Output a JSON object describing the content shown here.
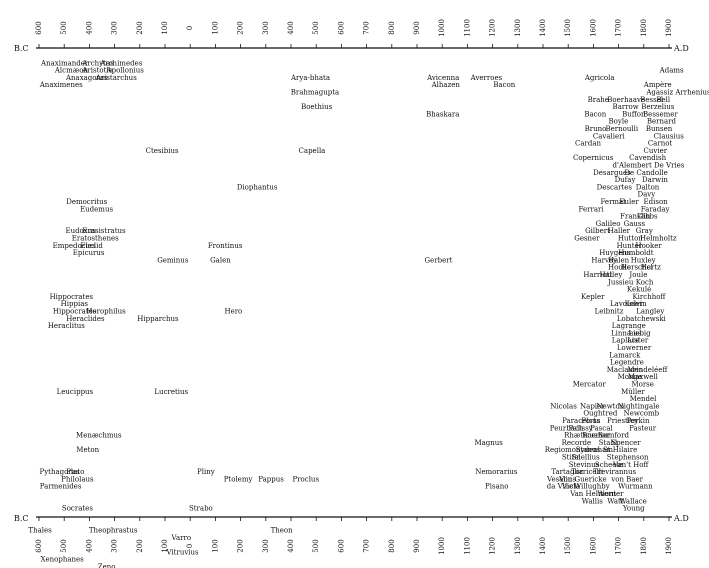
{
  "era_labels": {
    "top_left": "B.C",
    "top_right": "A.D",
    "bottom_left": "B.C",
    "bottom_right": "A.D"
  },
  "axis_ticks": [
    {
      "year": -600,
      "label": "600"
    },
    {
      "year": -500,
      "label": "500"
    },
    {
      "year": -400,
      "label": "400"
    },
    {
      "year": -300,
      "label": "300"
    },
    {
      "year": -200,
      "label": "200"
    },
    {
      "year": -100,
      "label": "100"
    },
    {
      "year": 0,
      "label": "0"
    },
    {
      "year": 100,
      "label": "100"
    },
    {
      "year": 200,
      "label": "200"
    },
    {
      "year": 300,
      "label": "300"
    },
    {
      "year": 400,
      "label": "400"
    },
    {
      "year": 500,
      "label": "500"
    },
    {
      "year": 600,
      "label": "600"
    },
    {
      "year": 700,
      "label": "700"
    },
    {
      "year": 800,
      "label": "800"
    },
    {
      "year": 900,
      "label": "900"
    },
    {
      "year": 1000,
      "label": "1000"
    },
    {
      "year": 1100,
      "label": "1100"
    },
    {
      "year": 1200,
      "label": "1200"
    },
    {
      "year": 1300,
      "label": "1300"
    },
    {
      "year": 1400,
      "label": "1400"
    },
    {
      "year": 1500,
      "label": "1500"
    },
    {
      "year": 1600,
      "label": "1600"
    },
    {
      "year": 1700,
      "label": "1700"
    },
    {
      "year": 1800,
      "label": "1800"
    },
    {
      "year": 1900,
      "label": "1900"
    }
  ],
  "names": [
    {
      "n": "Anaximander",
      "x": -592,
      "y": 1
    },
    {
      "n": "Archytas",
      "x": -428,
      "y": 1
    },
    {
      "n": "Archimedes",
      "x": -357,
      "y": 1
    },
    {
      "n": "Alcmæon",
      "x": -537,
      "y": 2
    },
    {
      "n": "Aristotle",
      "x": -428,
      "y": 2
    },
    {
      "n": "Apollonius",
      "x": -332,
      "y": 2
    },
    {
      "n": "Anaxagoras",
      "x": -493,
      "y": 3
    },
    {
      "n": "Aristarchus",
      "x": -375,
      "y": 3
    },
    {
      "n": "Anaximenes",
      "x": -597,
      "y": 4
    },
    {
      "n": "Ctesibius",
      "x": -177,
      "y": 13
    },
    {
      "n": "Democritus",
      "x": -492,
      "y": 20
    },
    {
      "n": "Eudemus",
      "x": -437,
      "y": 21
    },
    {
      "n": "Eudoxus",
      "x": -495,
      "y": 24
    },
    {
      "n": "Erasistratus",
      "x": -428,
      "y": 24
    },
    {
      "n": "Eratosthenes",
      "x": -470,
      "y": 25
    },
    {
      "n": "Empedocles",
      "x": -546,
      "y": 26
    },
    {
      "n": "Euclid",
      "x": -436,
      "y": 26
    },
    {
      "n": "Epicurus",
      "x": -466,
      "y": 27
    },
    {
      "n": "Geminus",
      "x": -131,
      "y": 28
    },
    {
      "n": "Galen",
      "x": 79,
      "y": 28
    },
    {
      "n": "Hippocrates",
      "x": -558,
      "y": 33
    },
    {
      "n": "Hippias",
      "x": -514,
      "y": 34
    },
    {
      "n": "Hippocrates",
      "x": -545,
      "y": 35
    },
    {
      "n": "Herophilus",
      "x": -412,
      "y": 35
    },
    {
      "n": "Heraclides",
      "x": -492,
      "y": 36
    },
    {
      "n": "Hipparchus",
      "x": -210,
      "y": 36
    },
    {
      "n": "Heraclitus",
      "x": -565,
      "y": 37
    },
    {
      "n": "Hero",
      "x": 136,
      "y": 35
    },
    {
      "n": "Leucippus",
      "x": -530,
      "y": 46
    },
    {
      "n": "Lucretius",
      "x": -142,
      "y": 46
    },
    {
      "n": "Menæchmus",
      "x": -453,
      "y": 52
    },
    {
      "n": "Meton",
      "x": -452,
      "y": 54
    },
    {
      "n": "Pythagoras",
      "x": -598,
      "y": 57
    },
    {
      "n": "Plato",
      "x": -492,
      "y": 57
    },
    {
      "n": "Philolaus",
      "x": -512,
      "y": 58
    },
    {
      "n": "Parmenides",
      "x": -597,
      "y": 59
    },
    {
      "n": "Socrates",
      "x": -509,
      "y": 62
    },
    {
      "n": "Thales",
      "x": -642,
      "y": 65
    },
    {
      "n": "Theophrastus",
      "x": -402,
      "y": 65
    },
    {
      "n": "Xenophanes",
      "x": -594,
      "y": 69
    },
    {
      "n": "Zeno",
      "x": -367,
      "y": 70
    },
    {
      "n": "Strabo",
      "x": -5,
      "y": 62
    },
    {
      "n": "Varro",
      "x": -74,
      "y": 66
    },
    {
      "n": "Vitruvius",
      "x": -94,
      "y": 68
    },
    {
      "n": "Theon",
      "x": 319,
      "y": 65
    },
    {
      "n": "Diophantus",
      "x": 185,
      "y": 18
    },
    {
      "n": "Frontinus",
      "x": 70,
      "y": 26
    },
    {
      "n": "Pliny",
      "x": 27,
      "y": 57
    },
    {
      "n": "Ptolemy",
      "x": 133,
      "y": 58
    },
    {
      "n": "Pappus",
      "x": 270,
      "y": 58
    },
    {
      "n": "Proclus",
      "x": 406,
      "y": 58
    },
    {
      "n": "Arya-bhata",
      "x": 400,
      "y": 3
    },
    {
      "n": "Brahmagupta",
      "x": 399,
      "y": 5
    },
    {
      "n": "Boethius",
      "x": 440,
      "y": 7
    },
    {
      "n": "Capella",
      "x": 430,
      "y": 13
    },
    {
      "n": "Gerbert",
      "x": 930,
      "y": 28
    },
    {
      "n": "Avicenna",
      "x": 940,
      "y": 3
    },
    {
      "n": "Alhazen",
      "x": 958,
      "y": 4
    },
    {
      "n": "Averroes",
      "x": 1113,
      "y": 3
    },
    {
      "n": "Bhaskara",
      "x": 936,
      "y": 8
    },
    {
      "n": "Bacon",
      "x": 1203,
      "y": 4
    },
    {
      "n": "Magnus",
      "x": 1128,
      "y": 53
    },
    {
      "n": "Nemorarius",
      "x": 1131,
      "y": 57
    },
    {
      "n": "Pisano",
      "x": 1170,
      "y": 59
    },
    {
      "n": "Agricola",
      "x": 1566,
      "y": 3
    },
    {
      "n": "Adams",
      "x": 1863,
      "y": 2
    },
    {
      "n": "Ampère",
      "x": 1800,
      "y": 4
    },
    {
      "n": "Agassiz Arrhenius",
      "x": 1810,
      "y": 5
    },
    {
      "n": "Brahe",
      "x": 1577,
      "y": 6
    },
    {
      "n": "Boerhaave",
      "x": 1655,
      "y": 6
    },
    {
      "n": "Bessel",
      "x": 1786,
      "y": 6
    },
    {
      "n": "Bell",
      "x": 1850,
      "y": 6
    },
    {
      "n": "Barrow",
      "x": 1676,
      "y": 7
    },
    {
      "n": "Berzelius",
      "x": 1790,
      "y": 7
    },
    {
      "n": "Bacon",
      "x": 1564,
      "y": 8
    },
    {
      "n": "Buffon",
      "x": 1714,
      "y": 8
    },
    {
      "n": "Bessemer",
      "x": 1797,
      "y": 8
    },
    {
      "n": "Boyle",
      "x": 1660,
      "y": 9
    },
    {
      "n": "Bernard",
      "x": 1812,
      "y": 9
    },
    {
      "n": "Bruno",
      "x": 1565,
      "y": 10
    },
    {
      "n": "Bernoulli",
      "x": 1648,
      "y": 10
    },
    {
      "n": "Bunsen",
      "x": 1808,
      "y": 10
    },
    {
      "n": "Cavalieri",
      "x": 1598,
      "y": 11
    },
    {
      "n": "Clausius",
      "x": 1839,
      "y": 11
    },
    {
      "n": "Cardan",
      "x": 1527,
      "y": 12
    },
    {
      "n": "Carnot",
      "x": 1816,
      "y": 12
    },
    {
      "n": "Cuvier",
      "x": 1799,
      "y": 13
    },
    {
      "n": "Copernicus",
      "x": 1519,
      "y": 14
    },
    {
      "n": "Cavendish",
      "x": 1742,
      "y": 14
    },
    {
      "n": "d'Alembert De Vries",
      "x": 1676,
      "y": 15
    },
    {
      "n": "Desargues",
      "x": 1599,
      "y": 16
    },
    {
      "n": "De Candolle",
      "x": 1723,
      "y": 16
    },
    {
      "n": "Dufay",
      "x": 1684,
      "y": 17
    },
    {
      "n": "Darwin",
      "x": 1793,
      "y": 17
    },
    {
      "n": "Descartes",
      "x": 1613,
      "y": 18
    },
    {
      "n": "Dalton",
      "x": 1768,
      "y": 18
    },
    {
      "n": "Davy",
      "x": 1775,
      "y": 19
    },
    {
      "n": "Fermat",
      "x": 1628,
      "y": 20
    },
    {
      "n": "Euler",
      "x": 1703,
      "y": 20
    },
    {
      "n": "Edison",
      "x": 1799,
      "y": 20
    },
    {
      "n": "Ferrari",
      "x": 1541,
      "y": 21
    },
    {
      "n": "Faraday",
      "x": 1788,
      "y": 21
    },
    {
      "n": "Franklin",
      "x": 1706,
      "y": 22
    },
    {
      "n": "Gibbs",
      "x": 1774,
      "y": 22
    },
    {
      "n": "Galileo",
      "x": 1609,
      "y": 23
    },
    {
      "n": "Gauss",
      "x": 1720,
      "y": 23
    },
    {
      "n": "Gilbert",
      "x": 1567,
      "y": 24
    },
    {
      "n": "Haller",
      "x": 1657,
      "y": 24
    },
    {
      "n": "Gray",
      "x": 1768,
      "y": 24
    },
    {
      "n": "Gesner",
      "x": 1524,
      "y": 25
    },
    {
      "n": "Hutton",
      "x": 1697,
      "y": 25
    },
    {
      "n": "Helmholtz",
      "x": 1785,
      "y": 25
    },
    {
      "n": "Hunter",
      "x": 1692,
      "y": 26
    },
    {
      "n": "Hooker",
      "x": 1767,
      "y": 26
    },
    {
      "n": "Huygens",
      "x": 1623,
      "y": 27
    },
    {
      "n": "Humboldt",
      "x": 1698,
      "y": 27
    },
    {
      "n": "Harvey",
      "x": 1592,
      "y": 28
    },
    {
      "n": "Halen",
      "x": 1658,
      "y": 28
    },
    {
      "n": "Huxley",
      "x": 1748,
      "y": 28
    },
    {
      "n": "Hooke",
      "x": 1658,
      "y": 29
    },
    {
      "n": "Herschel",
      "x": 1709,
      "y": 29
    },
    {
      "n": "Hertz",
      "x": 1788,
      "y": 29
    },
    {
      "n": "Harriott",
      "x": 1560,
      "y": 30
    },
    {
      "n": "Halley",
      "x": 1624,
      "y": 30
    },
    {
      "n": "Joule",
      "x": 1743,
      "y": 30
    },
    {
      "n": "Jussieu",
      "x": 1658,
      "y": 31
    },
    {
      "n": "Koch",
      "x": 1768,
      "y": 31
    },
    {
      "n": "Kekulé",
      "x": 1733,
      "y": 32
    },
    {
      "n": "Kepler",
      "x": 1551,
      "y": 33
    },
    {
      "n": "Kirchhoff",
      "x": 1755,
      "y": 33
    },
    {
      "n": "Lavoisier",
      "x": 1666,
      "y": 34
    },
    {
      "n": "Kelvin",
      "x": 1724,
      "y": 34
    },
    {
      "n": "Leibnitz",
      "x": 1605,
      "y": 35
    },
    {
      "n": "Langley",
      "x": 1770,
      "y": 35
    },
    {
      "n": "Lobatchewski",
      "x": 1693,
      "y": 36
    },
    {
      "n": "Lagrange",
      "x": 1673,
      "y": 37
    },
    {
      "n": "Linnæus",
      "x": 1670,
      "y": 38
    },
    {
      "n": "Liebig",
      "x": 1739,
      "y": 38
    },
    {
      "n": "Laplace",
      "x": 1673,
      "y": 39
    },
    {
      "n": "Lister",
      "x": 1735,
      "y": 39
    },
    {
      "n": "Lowerner",
      "x": 1693,
      "y": 40
    },
    {
      "n": "Lamarck",
      "x": 1663,
      "y": 41
    },
    {
      "n": "Legendre",
      "x": 1666,
      "y": 42
    },
    {
      "n": "Maclaurin",
      "x": 1653,
      "y": 43
    },
    {
      "n": "Mendeléeff",
      "x": 1735,
      "y": 43
    },
    {
      "n": "Monge",
      "x": 1696,
      "y": 44
    },
    {
      "n": "Maxwell",
      "x": 1737,
      "y": 44
    },
    {
      "n": "Mercator",
      "x": 1518,
      "y": 45
    },
    {
      "n": "Morse",
      "x": 1751,
      "y": 45
    },
    {
      "n": "Müller",
      "x": 1710,
      "y": 46
    },
    {
      "n": "Mendel",
      "x": 1744,
      "y": 47
    },
    {
      "n": "Nicolas",
      "x": 1429,
      "y": 48
    },
    {
      "n": "Napier",
      "x": 1547,
      "y": 48
    },
    {
      "n": "Newton",
      "x": 1612,
      "y": 48
    },
    {
      "n": "Nightingale",
      "x": 1696,
      "y": 48
    },
    {
      "n": "Oughtred",
      "x": 1560,
      "y": 49
    },
    {
      "n": "Newcomb",
      "x": 1720,
      "y": 49
    },
    {
      "n": "Paracelsus",
      "x": 1476,
      "y": 50
    },
    {
      "n": "Porta",
      "x": 1552,
      "y": 50
    },
    {
      "n": "Priestley",
      "x": 1654,
      "y": 50
    },
    {
      "n": "Perkin",
      "x": 1732,
      "y": 50
    },
    {
      "n": "Peurbach",
      "x": 1427,
      "y": 51
    },
    {
      "n": "Palissy",
      "x": 1501,
      "y": 51
    },
    {
      "n": "Pascal",
      "x": 1587,
      "y": 51
    },
    {
      "n": "Pasteur",
      "x": 1742,
      "y": 51
    },
    {
      "n": "Rhæticus",
      "x": 1484,
      "y": 52
    },
    {
      "n": "Roemer",
      "x": 1555,
      "y": 52
    },
    {
      "n": "Rumford",
      "x": 1618,
      "y": 52
    },
    {
      "n": "Recorde",
      "x": 1474,
      "y": 53
    },
    {
      "n": "Stahl",
      "x": 1621,
      "y": 53
    },
    {
      "n": "Spencer",
      "x": 1671,
      "y": 53
    },
    {
      "n": "Regiomontanus",
      "x": 1407,
      "y": 54
    },
    {
      "n": "Sydenham",
      "x": 1530,
      "y": 54
    },
    {
      "n": "St Hilaire",
      "x": 1638,
      "y": 54
    },
    {
      "n": "Stifel",
      "x": 1475,
      "y": 55
    },
    {
      "n": "Snellius",
      "x": 1513,
      "y": 55
    },
    {
      "n": "Stephenson",
      "x": 1653,
      "y": 55
    },
    {
      "n": "Stevinus",
      "x": 1502,
      "y": 56
    },
    {
      "n": "Scheele",
      "x": 1606,
      "y": 56
    },
    {
      "n": "Van't Hoff",
      "x": 1678,
      "y": 56
    },
    {
      "n": "Tartaglia",
      "x": 1433,
      "y": 57
    },
    {
      "n": "Torricelli",
      "x": 1512,
      "y": 57
    },
    {
      "n": "Trevirannus",
      "x": 1599,
      "y": 57
    },
    {
      "n": "Vesalius",
      "x": 1416,
      "y": 58
    },
    {
      "n": "Von Guericke",
      "x": 1464,
      "y": 58
    },
    {
      "n": "von Baer",
      "x": 1671,
      "y": 58
    },
    {
      "n": "da Vinci",
      "x": 1415,
      "y": 59
    },
    {
      "n": "Vieta",
      "x": 1475,
      "y": 59
    },
    {
      "n": "Willughby",
      "x": 1523,
      "y": 59
    },
    {
      "n": "Wurmann",
      "x": 1698,
      "y": 59
    },
    {
      "n": "Van Helmont",
      "x": 1508,
      "y": 60
    },
    {
      "n": "Werner",
      "x": 1616,
      "y": 60
    },
    {
      "n": "Wallis",
      "x": 1554,
      "y": 61
    },
    {
      "n": "Watt",
      "x": 1655,
      "y": 61
    },
    {
      "n": "Wallace",
      "x": 1703,
      "y": 61
    },
    {
      "n": "Young",
      "x": 1717,
      "y": 62
    }
  ]
}
